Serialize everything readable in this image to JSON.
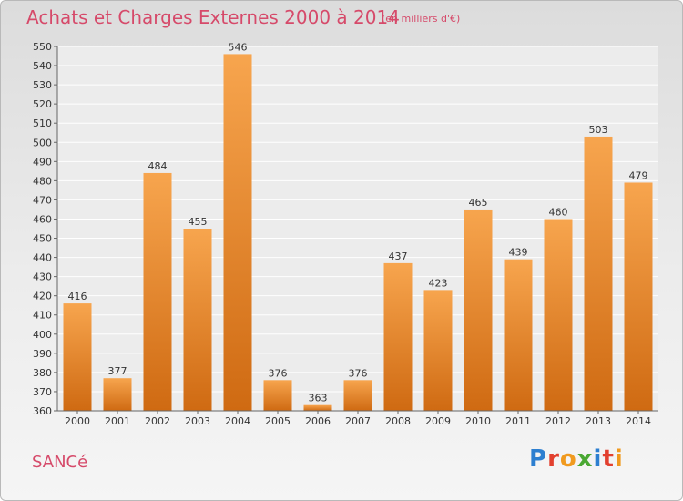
{
  "title": "Achats et Charges Externes 2000 à 2014",
  "unit_label": "(en milliers d'€)",
  "place_name": "SANCé",
  "brand": {
    "letters": [
      "P",
      "r",
      "o",
      "x",
      "i",
      "t",
      "i"
    ],
    "colors": [
      "#2d7fd0",
      "#e2402f",
      "#f09a1f",
      "#4aa832",
      "#2d7fd0",
      "#e2402f",
      "#f09a1f"
    ]
  },
  "colors": {
    "title": "#d64a6a",
    "bar_top": "#f7a54e",
    "bar_bottom": "#cf6a12"
  },
  "chart_data": {
    "type": "bar",
    "categories": [
      "2000",
      "2001",
      "2002",
      "2003",
      "2004",
      "2005",
      "2006",
      "2007",
      "2008",
      "2009",
      "2010",
      "2011",
      "2012",
      "2013",
      "2014"
    ],
    "values": [
      416,
      377,
      484,
      455,
      546,
      376,
      363,
      376,
      437,
      423,
      465,
      439,
      460,
      503,
      479
    ],
    "title": "Achats et Charges Externes 2000 à 2014",
    "xlabel": "",
    "ylabel": "",
    "ylim": [
      360,
      550
    ],
    "yticks": [
      360,
      370,
      380,
      390,
      400,
      410,
      420,
      430,
      440,
      450,
      460,
      470,
      480,
      490,
      500,
      510,
      520,
      530,
      540,
      550
    ],
    "grid": true,
    "data_labels": true
  }
}
